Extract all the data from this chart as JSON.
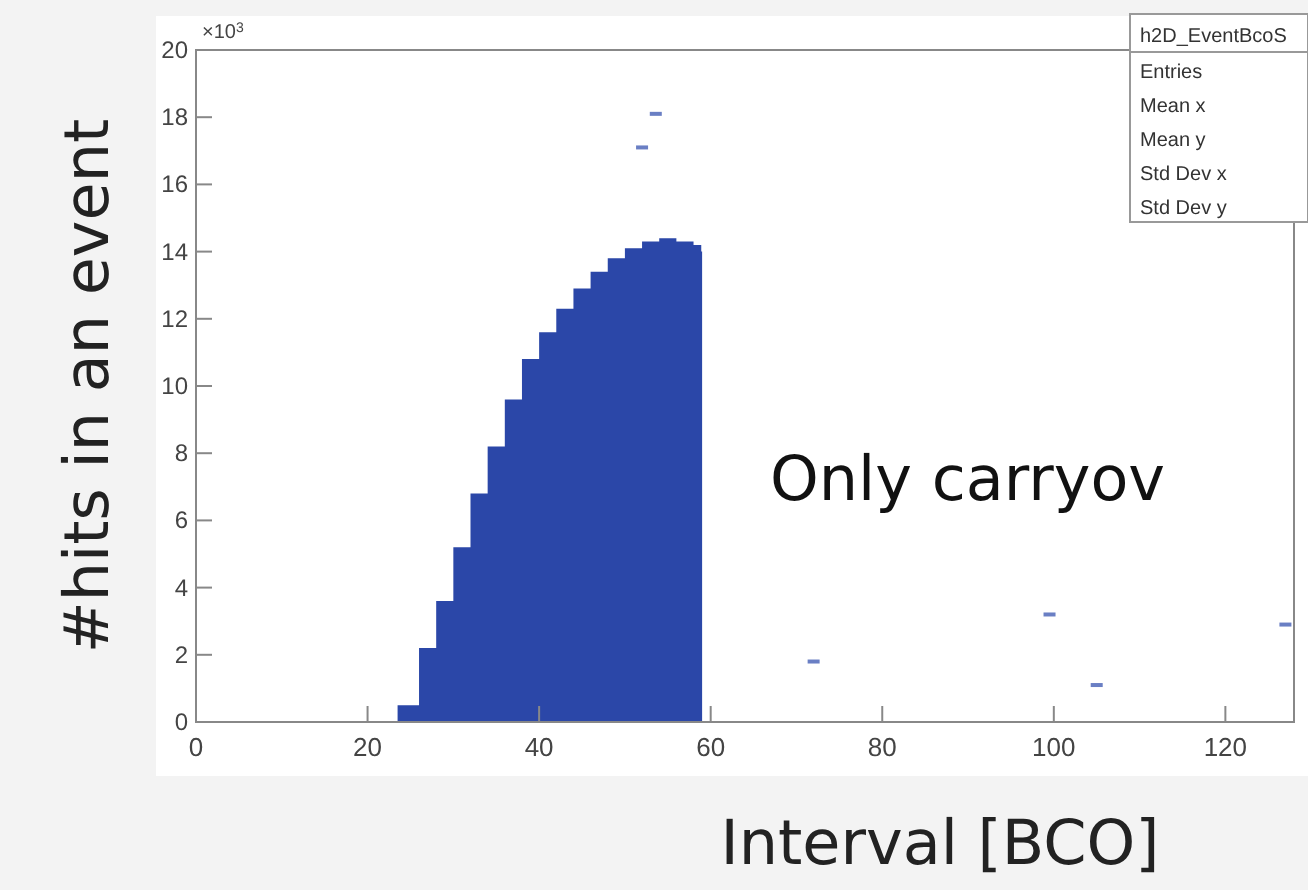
{
  "chart_data": {
    "type": "area",
    "xlabel": "Interval [BCO]",
    "ylabel": "#hits in an event",
    "annotations": [
      "×10$^{3}$",
      "h2D_EventBcoS",
      "Entries",
      "Mean x",
      "Mean y",
      "Std Dev x",
      "Std Dev y",
      "Only carryov"
    ],
    "xlim": [
      0,
      128
    ],
    "xticks": [
      0,
      20,
      40,
      60,
      80,
      100,
      120
    ],
    "ylim": [
      0,
      20
    ],
    "yticks": [
      0,
      2,
      4,
      6,
      8,
      10,
      12,
      14,
      16,
      18,
      20
    ],
    "series": [
      {
        "color": "#2b47a8",
        "x": [
          23,
          23.5,
          26,
          28,
          30,
          32,
          34,
          36,
          38,
          40,
          42,
          44,
          46,
          48,
          50,
          52,
          54,
          56,
          58,
          58.9,
          59
        ],
        "values": [
          0,
          0.5,
          2.2,
          3.6,
          5.2,
          6.8,
          8.2,
          9.6,
          10.8,
          11.6,
          12.3,
          12.9,
          13.4,
          13.8,
          14.1,
          14.3,
          14.4,
          14.3,
          14.2,
          14,
          0
        ]
      },
      {
        "type": "scatter",
        "marker": "square",
        "color": "#6a7fc4",
        "x": [
          52,
          53.6,
          72,
          99.5,
          105,
          127
        ],
        "values": [
          17.1,
          18.1,
          1.8,
          3.2,
          1.1,
          2.9
        ]
      }
    ],
    "grid": false
  }
}
